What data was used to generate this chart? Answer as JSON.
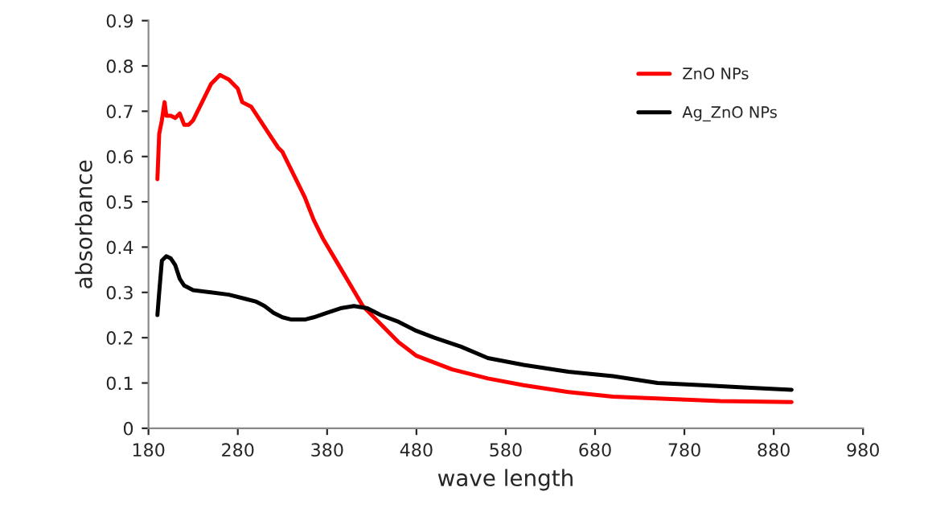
{
  "chart_data": {
    "type": "line",
    "xlabel": "wave length",
    "ylabel": "absorbance",
    "xlim": [
      180,
      980
    ],
    "xticks": [
      180,
      280,
      380,
      480,
      580,
      680,
      780,
      880,
      980
    ],
    "ylim": [
      0,
      0.9
    ],
    "yticks": [
      0,
      0.1,
      0.2,
      0.3,
      0.4,
      0.5,
      0.6,
      0.7,
      0.8,
      0.9
    ],
    "grid": false,
    "legend": "top right",
    "marker": "none",
    "line_style": "solid",
    "series": [
      {
        "name": "ZnO NPs",
        "color": "#ff0000",
        "x": [
          190,
          192,
          195,
          198,
          200,
          205,
          210,
          215,
          220,
          225,
          230,
          240,
          250,
          260,
          265,
          270,
          280,
          285,
          295,
          305,
          315,
          325,
          330,
          335,
          345,
          355,
          365,
          375,
          390,
          405,
          420,
          440,
          460,
          480,
          520,
          560,
          600,
          650,
          700,
          760,
          820,
          900
        ],
        "values": [
          0.55,
          0.65,
          0.68,
          0.72,
          0.69,
          0.69,
          0.685,
          0.695,
          0.67,
          0.67,
          0.68,
          0.72,
          0.76,
          0.78,
          0.775,
          0.77,
          0.75,
          0.72,
          0.71,
          0.68,
          0.65,
          0.62,
          0.61,
          0.59,
          0.55,
          0.51,
          0.46,
          0.42,
          0.37,
          0.32,
          0.27,
          0.23,
          0.19,
          0.16,
          0.13,
          0.11,
          0.095,
          0.08,
          0.07,
          0.065,
          0.06,
          0.058
        ]
      },
      {
        "name": "Ag_ZnO NPs",
        "color": "#000000",
        "x": [
          190,
          192,
          195,
          200,
          205,
          210,
          215,
          220,
          230,
          250,
          270,
          290,
          300,
          310,
          320,
          330,
          340,
          355,
          365,
          380,
          395,
          410,
          425,
          440,
          460,
          480,
          500,
          530,
          560,
          600,
          650,
          700,
          750,
          800,
          850,
          900
        ],
        "values": [
          0.25,
          0.3,
          0.37,
          0.38,
          0.375,
          0.36,
          0.33,
          0.315,
          0.305,
          0.3,
          0.295,
          0.285,
          0.28,
          0.27,
          0.255,
          0.245,
          0.24,
          0.24,
          0.245,
          0.255,
          0.265,
          0.27,
          0.265,
          0.25,
          0.235,
          0.215,
          0.2,
          0.18,
          0.155,
          0.14,
          0.125,
          0.115,
          0.1,
          0.095,
          0.09,
          0.085
        ]
      }
    ]
  }
}
